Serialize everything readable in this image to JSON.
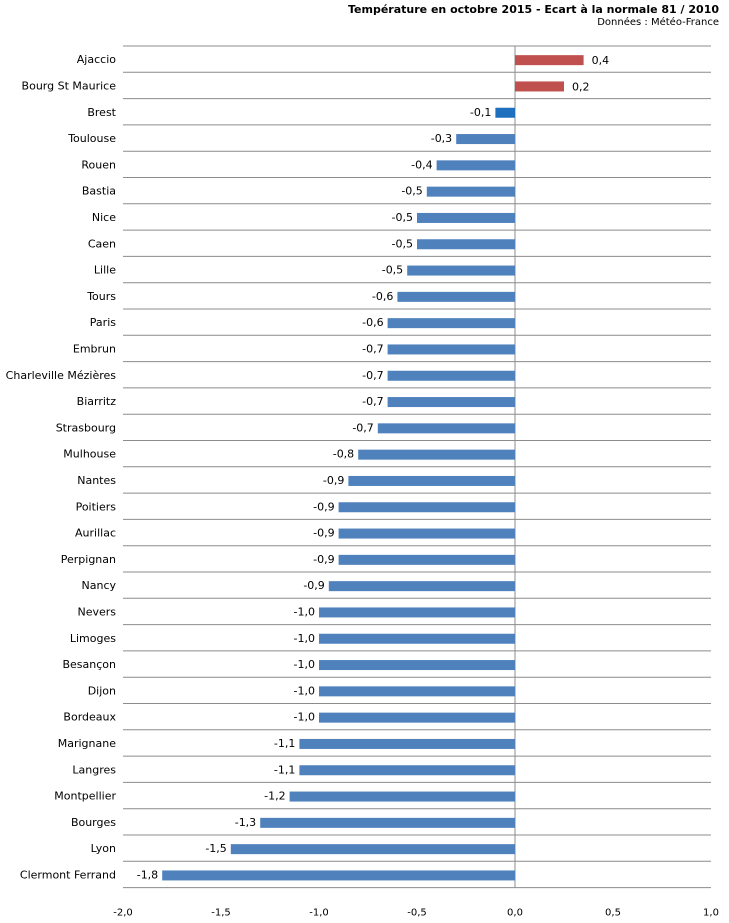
{
  "chart_data": {
    "type": "bar",
    "orientation": "horizontal",
    "title": "Température en octobre 2015 - Ecart à la normale 81 / 2010",
    "subtitle": "Données : Météo-France",
    "categories": [
      "Ajaccio",
      "Bourg St Maurice",
      "Brest",
      "Toulouse",
      "Rouen",
      "Bastia",
      "Nice",
      "Caen",
      "Lille",
      "Tours",
      "Paris",
      "Embrun",
      "Charleville Mézières",
      "Biarritz",
      "Strasbourg",
      "Mulhouse",
      "Nantes",
      "Poitiers",
      "Aurillac",
      "Perpignan",
      "Nancy",
      "Nevers",
      "Limoges",
      "Besançon",
      "Dijon",
      "Bordeaux",
      "Marignane",
      "Langres",
      "Montpellier",
      "Bourges",
      "Lyon",
      "Clermont Ferrand"
    ],
    "values": [
      0.35,
      0.25,
      -0.1,
      -0.3,
      -0.4,
      -0.45,
      -0.5,
      -0.5,
      -0.55,
      -0.6,
      -0.65,
      -0.65,
      -0.65,
      -0.65,
      -0.7,
      -0.8,
      -0.85,
      -0.9,
      -0.9,
      -0.9,
      -0.95,
      -1.0,
      -1.0,
      -1.0,
      -1.0,
      -1.0,
      -1.1,
      -1.1,
      -1.15,
      -1.3,
      -1.45,
      -1.8
    ],
    "value_labels": [
      "0,4",
      "0,2",
      "-0,1",
      "-0,3",
      "-0,4",
      "-0,5",
      "-0,5",
      "-0,5",
      "-0,5",
      "-0,6",
      "-0,6",
      "-0,7",
      "-0,7",
      "-0,7",
      "-0,7",
      "-0,8",
      "-0,9",
      "-0,9",
      "-0,9",
      "-0,9",
      "-0,9",
      "-1,0",
      "-1,0",
      "-1,0",
      "-1,0",
      "-1,0",
      "-1,1",
      "-1,1",
      "-1,2",
      "-1,3",
      "-1,5",
      "-1,8"
    ],
    "xlim": [
      -2.0,
      1.0
    ],
    "xticks": [
      -2.0,
      -1.5,
      -1.0,
      -0.5,
      0.0,
      0.5,
      1.0
    ],
    "xtick_labels": [
      "-2,0",
      "-1,5",
      "-1,0",
      "-0,5",
      "0,0",
      "0,5",
      "1,0"
    ],
    "grid": "horizontal",
    "colors": {
      "positive": "#c0504d",
      "negative": "#4f81bd",
      "highlight": "#1f6fbf",
      "grid": "#8c8c8c",
      "axis": "#8c8c8c"
    },
    "highlight_index": 2
  }
}
